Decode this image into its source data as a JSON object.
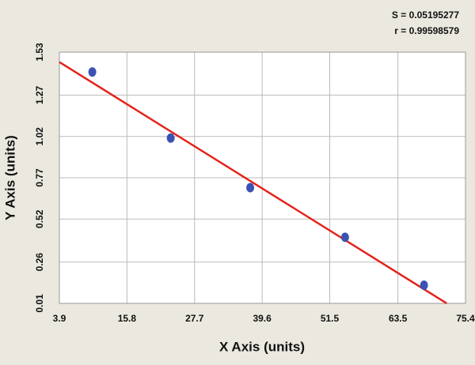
{
  "chart_data": {
    "type": "scatter",
    "annotations": [
      "S = 0.05195277",
      "r = 0.99598579"
    ],
    "x_label": "X Axis (units)",
    "y_label": "Y Axis (units)",
    "series": [
      {
        "color": "#3b52b4",
        "x": [
          9.7,
          23.5,
          37.5,
          54.2,
          68.1
        ],
        "values": [
          1.41,
          1.01,
          0.71,
          0.41,
          0.12
        ]
      }
    ],
    "fit": {
      "color": "#e3241c",
      "x": [
        3.9,
        72.1
      ],
      "values": [
        1.47,
        0.01
      ]
    },
    "xlim": [
      3.9,
      75.4
    ],
    "xticks": [
      3.9,
      15.8,
      27.7,
      39.6,
      51.5,
      63.5,
      75.4
    ],
    "ylim": [
      0.01,
      1.53
    ],
    "yticks": [
      0.01,
      0.26,
      0.52,
      0.77,
      1.02,
      1.27,
      1.53
    ],
    "grid": true
  }
}
